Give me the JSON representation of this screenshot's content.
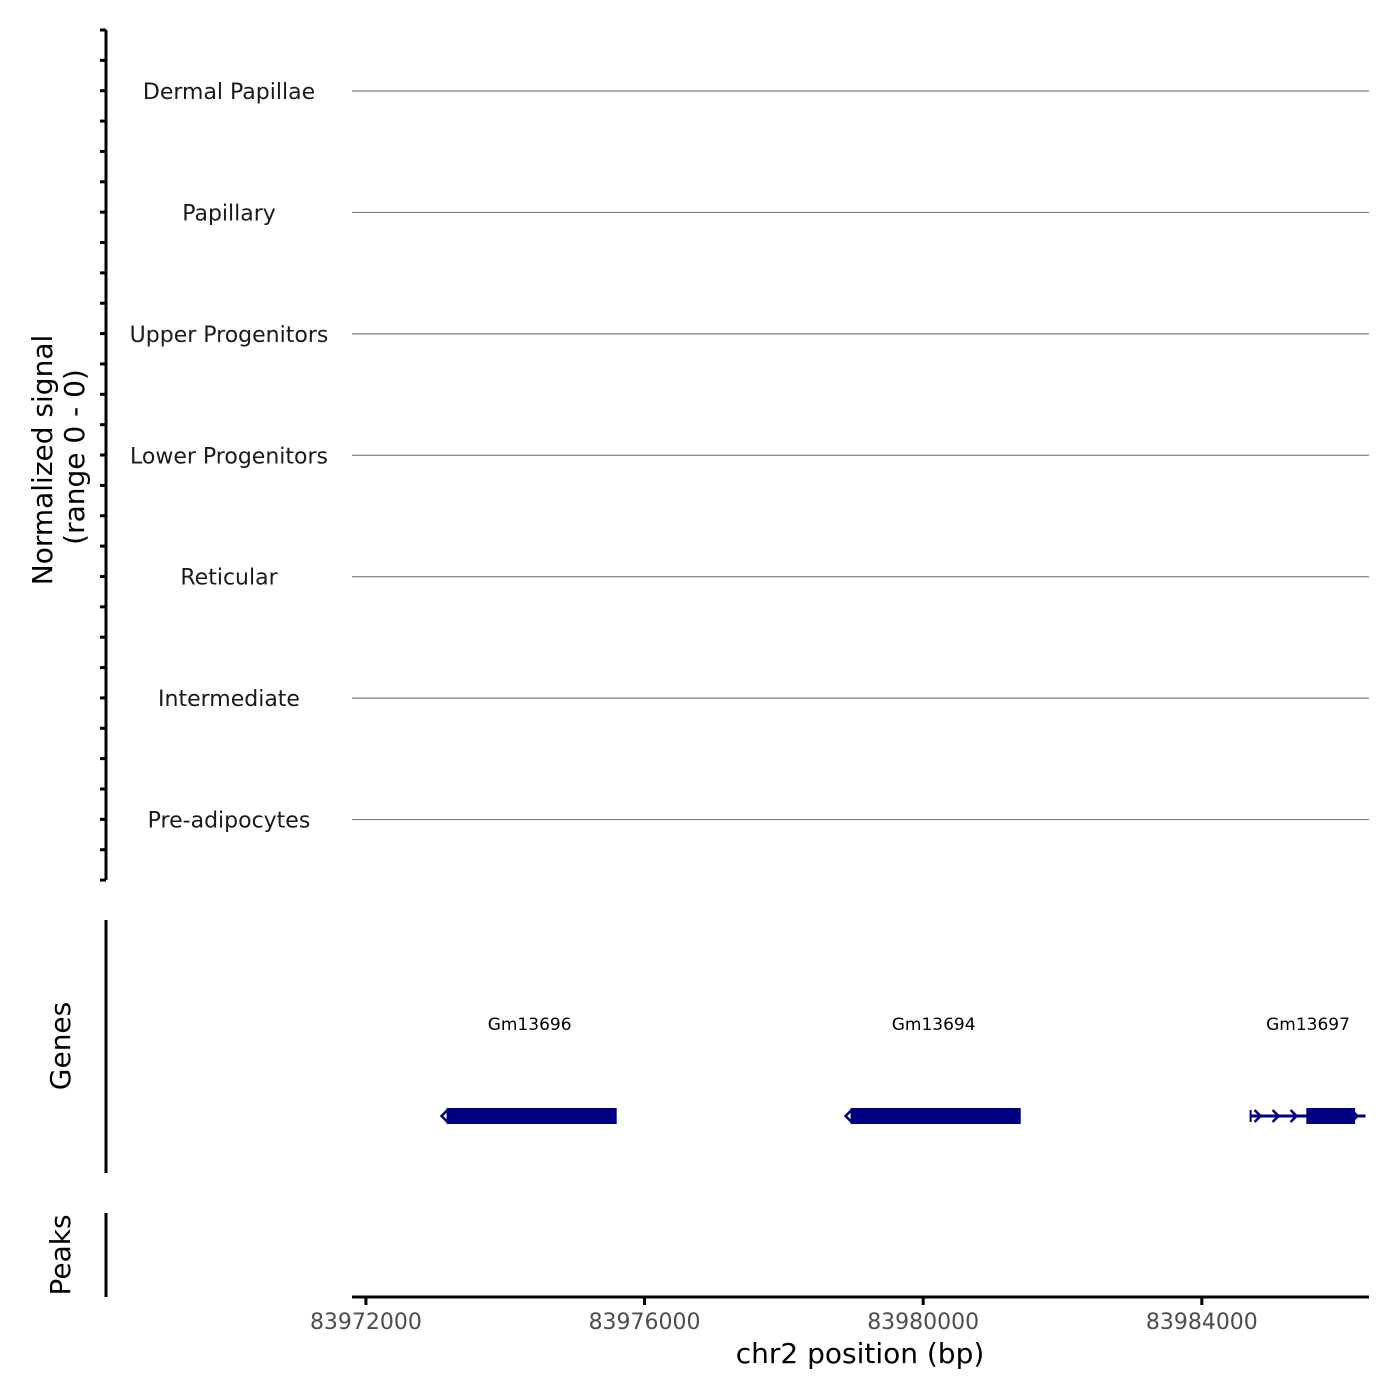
{
  "chart_data": {
    "type": "genome-track",
    "xlabel": "chr2 position (bp)",
    "xlim": [
      83971800,
      83986400
    ],
    "x_ticks": [
      83972000,
      83976000,
      83980000,
      83984000
    ],
    "x_tick_labels": [
      "83972000",
      "83976000",
      "83980000",
      "83984000"
    ],
    "coverage": {
      "ylabel_line1": "Normalized signal",
      "ylabel_line2": "(range 0 - 0)",
      "range": [
        0,
        0
      ],
      "tracks": [
        "Dermal Papillae",
        "Papillary",
        "Upper Progenitors",
        "Lower Progenitors",
        "Reticular",
        "Intermediate",
        "Pre-adipocytes"
      ],
      "line_color": "#7f7f7f"
    },
    "genes": {
      "ylabel": "Genes",
      "color": "#000080",
      "items": [
        {
          "name": "Gm13696",
          "start": 83973100,
          "end": 83975600,
          "strand": "-",
          "intron": false
        },
        {
          "name": "Gm13694",
          "start": 83978900,
          "end": 83981400,
          "strand": "-",
          "intron": false
        },
        {
          "name": "Gm13697",
          "start": 83984700,
          "end": 83986350,
          "strand": "+",
          "intron": true,
          "exon_start": 83985500,
          "exon_end": 83986200
        }
      ]
    },
    "peaks": {
      "ylabel": "Peaks",
      "items": []
    }
  }
}
